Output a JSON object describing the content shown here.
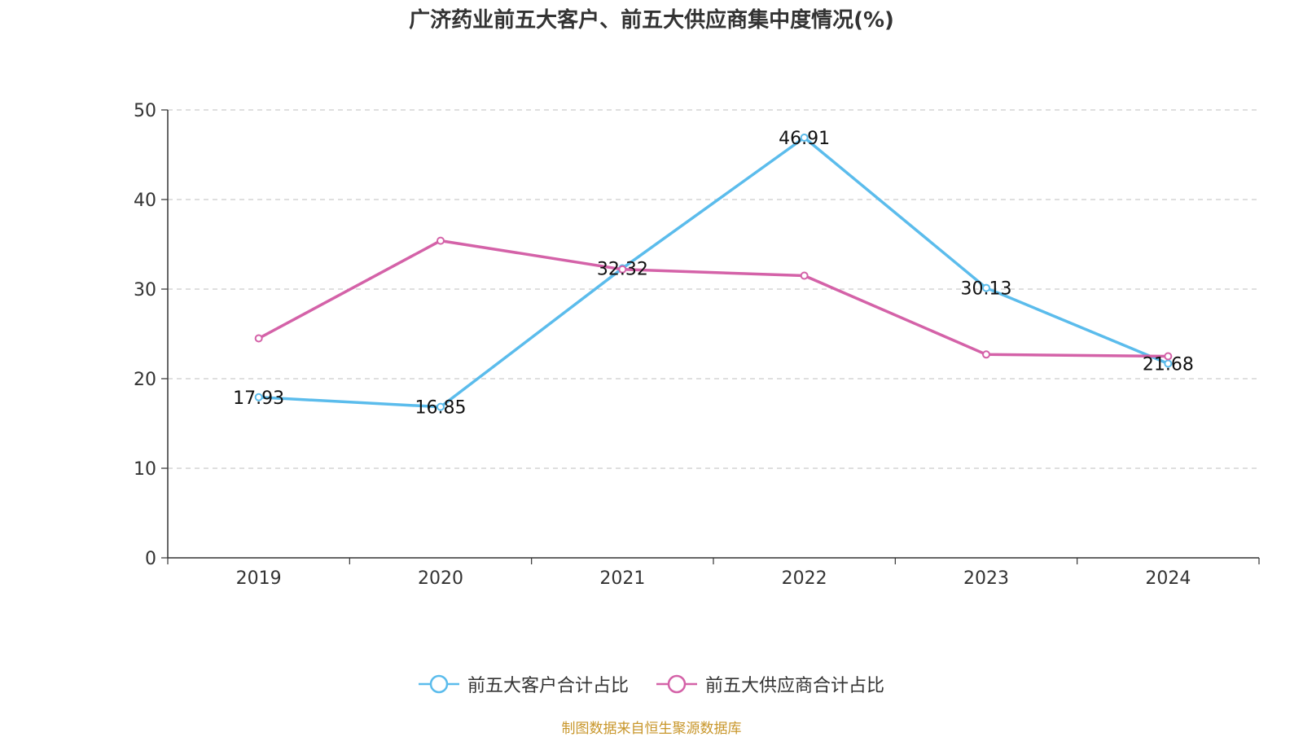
{
  "title": "广济药业前五大客户、前五大供应商集中度情况(%)",
  "source_note": "制图数据来自恒生聚源数据库",
  "chart_data": {
    "type": "line",
    "title": "广济药业前五大客户、前五大供应商集中度情况(%)",
    "categories": [
      "2019",
      "2020",
      "2021",
      "2022",
      "2023",
      "2024"
    ],
    "ylim": [
      0,
      50
    ],
    "yticks": [
      0,
      10,
      20,
      30,
      40,
      50
    ],
    "grid": true,
    "legend_position": "bottom",
    "series": [
      {
        "name": "前五大客户合计占比",
        "color": "#5bbcec",
        "values": [
          17.93,
          16.85,
          32.32,
          46.91,
          30.13,
          21.68
        ],
        "labels": [
          "17.93",
          "16.85",
          "32.32",
          "46.91",
          "30.13",
          "21.68"
        ]
      },
      {
        "name": "前五大供应商合计占比",
        "color": "#d462a8",
        "values": [
          24.5,
          35.4,
          32.2,
          31.5,
          22.7,
          22.5
        ],
        "labels": []
      }
    ]
  }
}
